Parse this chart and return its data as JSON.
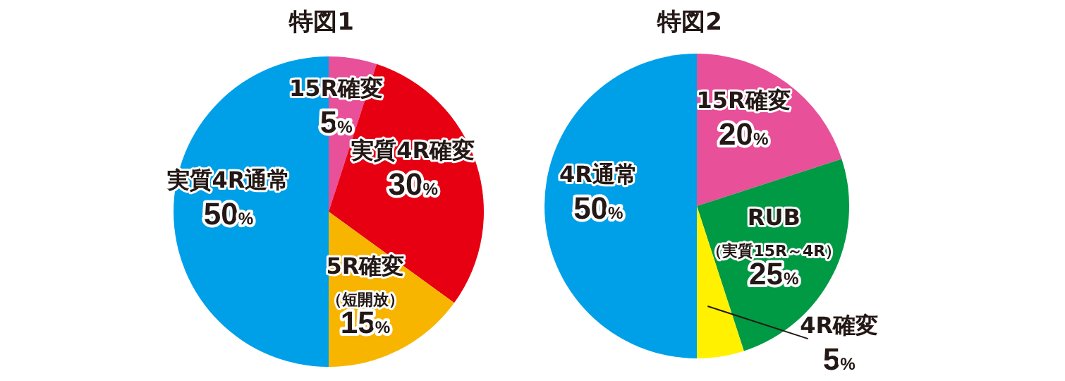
{
  "chart_data": [
    {
      "type": "pie",
      "title": "特図1",
      "categories": [
        "15R確変",
        "実質4R確変",
        "5R確変（短開放）",
        "実質4R通常"
      ],
      "values": [
        5,
        30,
        15,
        50
      ],
      "colors": [
        "#e8509a",
        "#e60012",
        "#f8b500",
        "#00a0e9"
      ],
      "value_labels": [
        "5%",
        "30%",
        "15%",
        "50%"
      ]
    },
    {
      "type": "pie",
      "title": "特図2",
      "categories": [
        "15R確変",
        "RUB（実質15R～4R）",
        "4R確変",
        "4R通常"
      ],
      "values": [
        20,
        25,
        5,
        50
      ],
      "colors": [
        "#e8509a",
        "#009944",
        "#fff100",
        "#00a0e9"
      ],
      "value_labels": [
        "20%",
        "25%",
        "5%",
        "50%"
      ]
    }
  ]
}
